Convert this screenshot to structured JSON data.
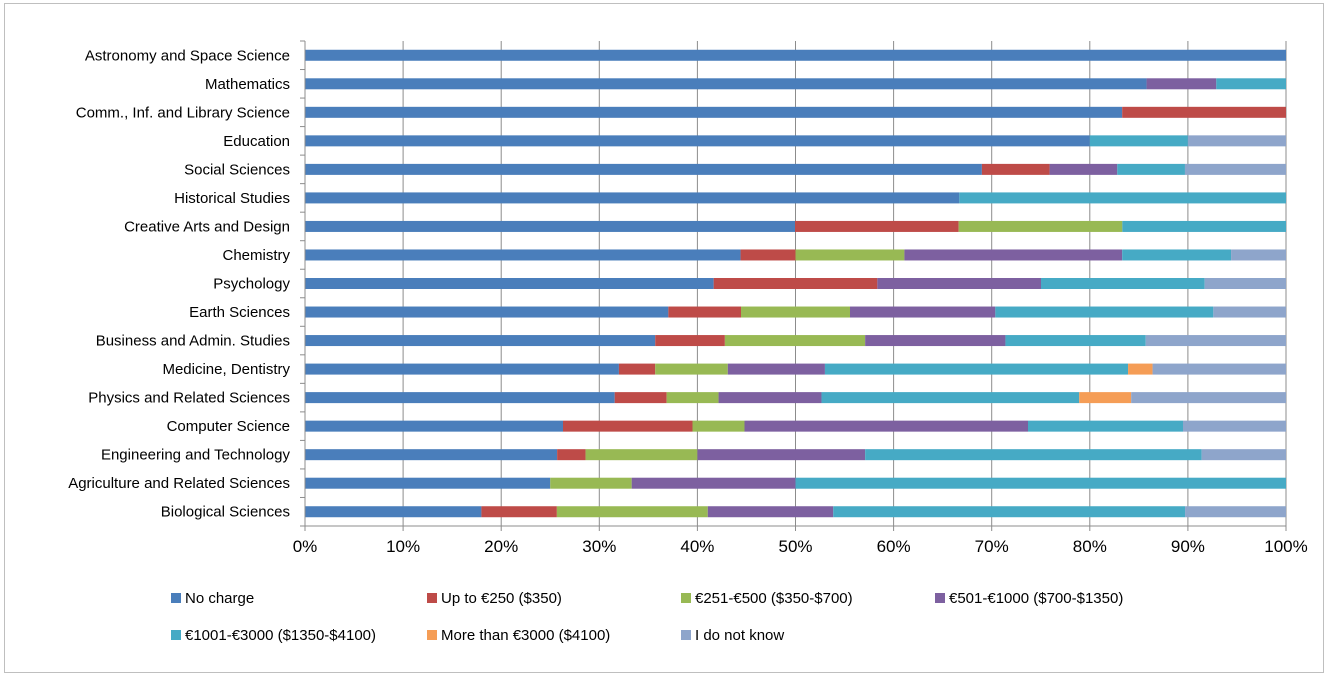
{
  "chart_data": {
    "type": "bar",
    "orientation": "horizontal",
    "stacked": "percent",
    "title": "",
    "xlabel": "",
    "ylabel": "",
    "xlim": [
      0,
      100
    ],
    "x_ticks": [
      "0%",
      "10%",
      "20%",
      "30%",
      "40%",
      "50%",
      "60%",
      "70%",
      "80%",
      "90%",
      "100%"
    ],
    "grid": "vertical major gridlines",
    "legend_position": "bottom",
    "categories": [
      "Astronomy and Space Science",
      "Mathematics",
      "Comm., Inf. and Library Science",
      "Education",
      "Social Sciences",
      "Historical Studies",
      "Creative Arts and Design",
      "Chemistry",
      "Psychology",
      "Earth Sciences",
      "Business and Admin. Studies",
      "Medicine, Dentistry",
      "Physics and Related Sciences",
      "Computer Science",
      "Engineering and Technology",
      "Agriculture and Related Sciences",
      "Biological Sciences"
    ],
    "series": [
      {
        "name": "No charge",
        "color": "#4a7ebb",
        "values": [
          100,
          85.7,
          83.3,
          80,
          69,
          66.7,
          50,
          44.4,
          41.7,
          37,
          35.7,
          32,
          31.6,
          26.3,
          25.7,
          25,
          18
        ]
      },
      {
        "name": "Up to €250 ($350)",
        "color": "#be4b48",
        "values": [
          0,
          0,
          16.7,
          0,
          6.9,
          0,
          16.7,
          5.6,
          16.7,
          7.4,
          7.1,
          3.7,
          5.3,
          13.2,
          2.9,
          0,
          7.7
        ]
      },
      {
        "name": "€251-€500 ($350-$700)",
        "color": "#98b954",
        "values": [
          0,
          0,
          0,
          0,
          0,
          0,
          16.7,
          11.1,
          0,
          11.1,
          14.3,
          7.4,
          5.3,
          5.3,
          11.4,
          8.3,
          15.4
        ]
      },
      {
        "name": "€501-€1000 ($700-$1350)",
        "color": "#7d60a0",
        "values": [
          0,
          7.1,
          0,
          0,
          6.9,
          0,
          0,
          22.2,
          16.7,
          14.8,
          14.3,
          9.9,
          10.5,
          28.9,
          17.1,
          16.7,
          12.8
        ]
      },
      {
        "name": "€1001-€3000 ($1350-$4100)",
        "color": "#46aac5",
        "values": [
          0,
          7.1,
          0,
          10,
          6.9,
          33.3,
          16.7,
          11.1,
          16.7,
          22.2,
          14.3,
          30.9,
          26.3,
          15.8,
          34.3,
          50,
          35.9
        ]
      },
      {
        "name": "More than €3000 ($4100)",
        "color": "#f59d56",
        "values": [
          0,
          0,
          0,
          0,
          0,
          0,
          0,
          0,
          0,
          0,
          0,
          2.5,
          5.3,
          0,
          0,
          0,
          0
        ]
      },
      {
        "name": "I do not know",
        "color": "#8ea5cb",
        "values": [
          0,
          0,
          0,
          10,
          10.3,
          0,
          0,
          5.6,
          8.3,
          7.4,
          14.3,
          13.6,
          15.8,
          10.5,
          8.6,
          0,
          10.3
        ]
      }
    ]
  }
}
